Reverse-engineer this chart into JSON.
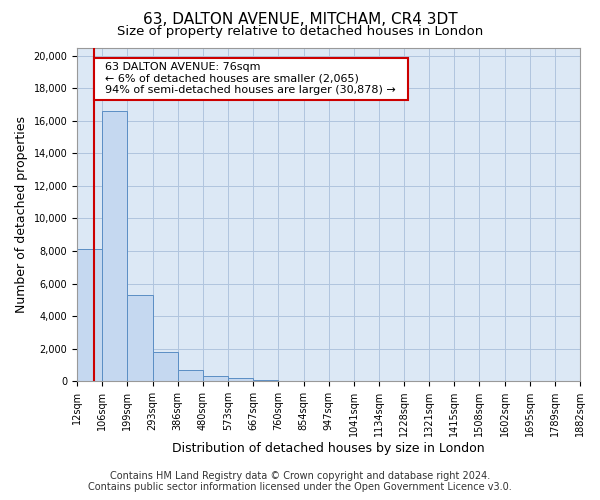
{
  "title": "63, DALTON AVENUE, MITCHAM, CR4 3DT",
  "subtitle": "Size of property relative to detached houses in London",
  "xlabel": "Distribution of detached houses by size in London",
  "ylabel": "Number of detached properties",
  "footer_line1": "Contains HM Land Registry data © Crown copyright and database right 2024.",
  "footer_line2": "Contains public sector information licensed under the Open Government Licence v3.0.",
  "bar_heights": [
    8100,
    16600,
    5300,
    1800,
    700,
    350,
    200,
    100,
    0,
    0,
    0,
    0,
    0,
    0,
    0,
    0,
    0,
    0,
    0,
    0
  ],
  "bin_edges": [
    12,
    106,
    199,
    293,
    386,
    480,
    573,
    667,
    760,
    854,
    947,
    1041,
    1134,
    1228,
    1321,
    1415,
    1508,
    1602,
    1695,
    1789,
    1882
  ],
  "bin_labels": [
    "12sqm",
    "106sqm",
    "199sqm",
    "293sqm",
    "386sqm",
    "480sqm",
    "573sqm",
    "667sqm",
    "760sqm",
    "854sqm",
    "947sqm",
    "1041sqm",
    "1134sqm",
    "1228sqm",
    "1321sqm",
    "1415sqm",
    "1508sqm",
    "1602sqm",
    "1695sqm",
    "1789sqm",
    "1882sqm"
  ],
  "bar_color": "#c5d8f0",
  "bar_edge_color": "#5b8ec4",
  "property_size": 76,
  "property_line_color": "#cc0000",
  "annotation_text": "  63 DALTON AVENUE: 76sqm  \n  ← 6% of detached houses are smaller (2,065)  \n  94% of semi-detached houses are larger (30,878) →  ",
  "annotation_box_color": "#ffffff",
  "annotation_box_edge_color": "#cc0000",
  "ylim": [
    0,
    20500
  ],
  "yticks": [
    0,
    2000,
    4000,
    6000,
    8000,
    10000,
    12000,
    14000,
    16000,
    18000,
    20000
  ],
  "background_color": "#ffffff",
  "plot_bg_color": "#dce8f5",
  "grid_color": "#b0c4de",
  "title_fontsize": 11,
  "subtitle_fontsize": 9.5,
  "axis_label_fontsize": 9,
  "tick_fontsize": 7,
  "footer_fontsize": 7,
  "annotation_fontsize": 8
}
